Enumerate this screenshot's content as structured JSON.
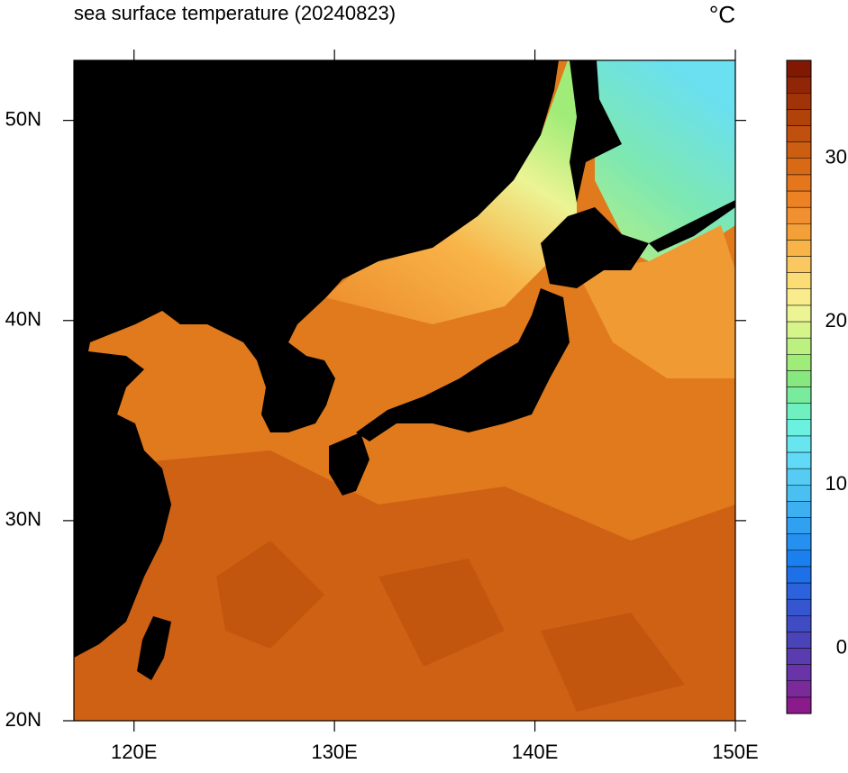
{
  "title": "sea surface temperature (20240823)",
  "unit": "°C",
  "map": {
    "lon_range": [
      117,
      150
    ],
    "lat_range": [
      20,
      53
    ],
    "lon_ticks": [
      {
        "value": 120,
        "label": "120E"
      },
      {
        "value": 130,
        "label": "130E"
      },
      {
        "value": 140,
        "label": "140E"
      },
      {
        "value": 150,
        "label": "150E"
      }
    ],
    "lat_ticks": [
      {
        "value": 20,
        "label": "20N"
      },
      {
        "value": 30,
        "label": "30N"
      },
      {
        "value": 40,
        "label": "40N"
      },
      {
        "value": 50,
        "label": "50N"
      }
    ]
  },
  "colorbar": {
    "range": [
      -4,
      36
    ],
    "ticks": [
      0,
      10,
      20,
      30
    ],
    "colors": [
      "#8b1a8b",
      "#7b2a9a",
      "#6a34a8",
      "#5a3cb0",
      "#4a44b8",
      "#3f4cc4",
      "#3656d0",
      "#2c62dc",
      "#1e70e8",
      "#1a80f0",
      "#2590f0",
      "#30a0f0",
      "#3cb0f0",
      "#4ac0f2",
      "#56ccf4",
      "#60daf6",
      "#68e6f0",
      "#6cf0e0",
      "#70f0c0",
      "#78ec9c",
      "#88e880",
      "#a0ec78",
      "#bcf080",
      "#d6f48a",
      "#ecf494",
      "#f8ec8c",
      "#fcdc74",
      "#fac860",
      "#f8b448",
      "#f4a038",
      "#f09030",
      "#ec8224",
      "#e4761c",
      "#d86a16",
      "#cc5e12",
      "#c0500e",
      "#b0420a",
      "#a03408",
      "#902606",
      "#801804"
    ]
  }
}
